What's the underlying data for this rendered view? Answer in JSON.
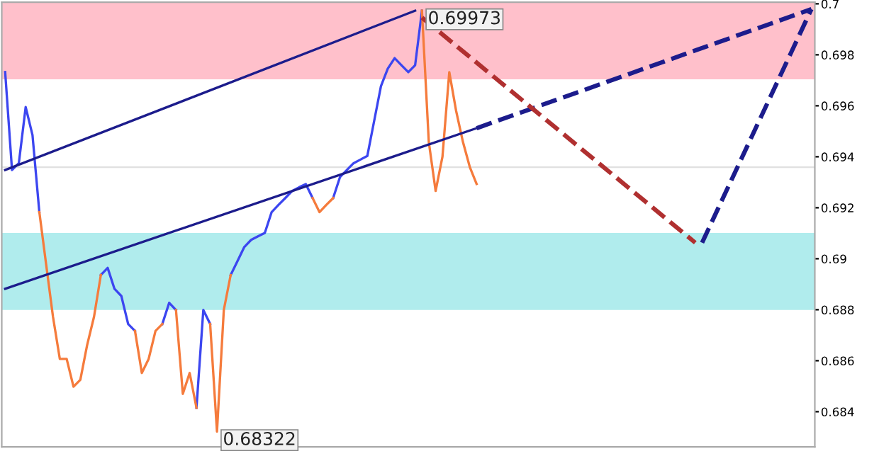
{
  "chart_data": {
    "type": "line",
    "tick_labels": "y",
    "categories": [
      null,
      null,
      null,
      null,
      null,
      null,
      null,
      null,
      null,
      null,
      null,
      null,
      null,
      null,
      null,
      null,
      null,
      null,
      null,
      null,
      null,
      null,
      null,
      null,
      null,
      null,
      null,
      null,
      null,
      null,
      null,
      null,
      null,
      null,
      null,
      null,
      null,
      null,
      null,
      null,
      null,
      null,
      null,
      null,
      null,
      null,
      null,
      null,
      null,
      null,
      null,
      null,
      null,
      null,
      null,
      null,
      null,
      null,
      null,
      null,
      null,
      null,
      null,
      null,
      null,
      null,
      null,
      null,
      null,
      null,
      null,
      null,
      null,
      null,
      null,
      null,
      null,
      null,
      null,
      null,
      null,
      null,
      null,
      null,
      null,
      null,
      null,
      null,
      null,
      null,
      null,
      null,
      null,
      null,
      null,
      null,
      null,
      null,
      null,
      null,
      null,
      null,
      null,
      null,
      null,
      null,
      null,
      null,
      null,
      null,
      null,
      null,
      null,
      null,
      null,
      null,
      null,
      null,
      null
    ],
    "ylim": [
      0.68262,
      0.70006
    ],
    "yticks": [
      0.684,
      0.686,
      0.688,
      0.69,
      0.692,
      0.694,
      0.696,
      0.698,
      0.7
    ],
    "bands": [
      {
        "axis": "y",
        "from": 0.69704,
        "to": 0.70006,
        "color": "#ffc0cb"
      },
      {
        "axis": "y",
        "from": 0.68799,
        "to": 0.69101,
        "color": "#b0eced"
      }
    ],
    "ref_lines": [
      {
        "axis": "y",
        "value": 0.69359,
        "color": "#e0e0e0"
      }
    ],
    "annotations": [
      "0.69973",
      "0.68322"
    ],
    "series": [
      {
        "color": "#3c46f0",
        "line_style": "solid",
        "values": [
          0.69732,
          0.69348,
          0.69375,
          0.69595,
          0.69485,
          0.69183,
          null,
          null,
          null,
          null,
          null,
          null,
          null,
          null,
          0.68936,
          0.68964,
          0.68882,
          0.68854,
          0.68744,
          0.68717,
          null,
          null,
          null,
          0.68744,
          0.68827,
          0.68799,
          null,
          null,
          0.68415,
          0.68799,
          0.68744,
          null,
          null,
          0.68936,
          0.68991,
          0.69046,
          0.69074,
          0.69088,
          0.69101,
          0.69183,
          0.69211,
          0.69238,
          0.69266,
          0.6928,
          0.69293,
          0.69238,
          null,
          null,
          0.69238,
          0.6932,
          0.69348,
          0.69375,
          0.69389,
          0.69403,
          0.6954,
          0.69677,
          0.69746,
          0.69787,
          0.69759,
          0.69732,
          0.69759,
          0.69973,
          null,
          null,
          null,
          null,
          null,
          null,
          null,
          null,
          null,
          null,
          null,
          null,
          null,
          null,
          null,
          null,
          null,
          null,
          null,
          null,
          null,
          null,
          null,
          null,
          null,
          null,
          null,
          null,
          null,
          null,
          null,
          null,
          null,
          null,
          null,
          null,
          null,
          null,
          null,
          null,
          null,
          null,
          null,
          null,
          null,
          null,
          null,
          null,
          null,
          null,
          null,
          null,
          null,
          null,
          null,
          null,
          null
        ]
      },
      {
        "color": "#f57b3c",
        "line_style": "solid",
        "values": [
          null,
          null,
          null,
          null,
          null,
          0.69183,
          0.68977,
          0.68772,
          0.68607,
          0.68607,
          0.68498,
          0.68525,
          0.68662,
          0.68772,
          0.68936,
          null,
          null,
          null,
          null,
          0.68717,
          0.68552,
          0.68607,
          0.68717,
          0.68744,
          null,
          0.68799,
          0.6847,
          0.68552,
          0.68415,
          null,
          0.68744,
          0.68322,
          0.68799,
          0.68936,
          null,
          null,
          null,
          null,
          null,
          null,
          null,
          null,
          null,
          null,
          null,
          0.69238,
          0.69183,
          0.69211,
          0.69238,
          null,
          null,
          null,
          null,
          null,
          null,
          null,
          null,
          null,
          null,
          null,
          null,
          0.69973,
          0.69458,
          0.69266,
          0.694,
          0.69732,
          0.6958,
          0.69458,
          0.6936,
          0.69293,
          null,
          null,
          null,
          null,
          null,
          null,
          null,
          null,
          null,
          null,
          null,
          null,
          null,
          null,
          null,
          null,
          null,
          null,
          null,
          null,
          null,
          null,
          null,
          null,
          null,
          null,
          null,
          null,
          null,
          null,
          null,
          null,
          null,
          null,
          null,
          null,
          null,
          null,
          null,
          null,
          null,
          null,
          null,
          null,
          null,
          null,
          null,
          null,
          null
        ]
      },
      {
        "color": "#1c1c8c",
        "line_style": "solid",
        "values": [
          0.69348,
          null,
          null,
          null,
          null,
          null,
          null,
          null,
          null,
          null,
          null,
          null,
          null,
          null,
          null,
          null,
          null,
          null,
          null,
          null,
          null,
          null,
          null,
          null,
          null,
          null,
          null,
          null,
          null,
          null,
          null,
          null,
          null,
          null,
          null,
          null,
          null,
          null,
          null,
          null,
          null,
          null,
          null,
          null,
          null,
          null,
          null,
          null,
          null,
          null,
          null,
          null,
          null,
          null,
          null,
          null,
          null,
          null,
          null,
          null,
          0.69973,
          null,
          null,
          null,
          null,
          null,
          null,
          null,
          null,
          null,
          null,
          null,
          null,
          null,
          null,
          null,
          null,
          null,
          null,
          null,
          null,
          null,
          null,
          null,
          null,
          null,
          null,
          null,
          null,
          null,
          null,
          null,
          null,
          null,
          null,
          null,
          null,
          null,
          null,
          null,
          null,
          null,
          null,
          null,
          null,
          null,
          null,
          null,
          null,
          null,
          null,
          null,
          null,
          null,
          null,
          null,
          null,
          null,
          null
        ]
      },
      {
        "color": "#1c1c8c",
        "line_style": "solid",
        "values": [
          0.68882,
          null,
          null,
          null,
          null,
          null,
          null,
          null,
          null,
          null,
          null,
          null,
          null,
          null,
          null,
          null,
          null,
          null,
          null,
          null,
          null,
          null,
          null,
          null,
          null,
          null,
          null,
          null,
          null,
          null,
          null,
          null,
          null,
          null,
          null,
          null,
          null,
          null,
          null,
          null,
          null,
          null,
          null,
          null,
          null,
          null,
          null,
          null,
          null,
          null,
          null,
          null,
          null,
          null,
          null,
          null,
          null,
          null,
          null,
          null,
          null,
          null,
          null,
          null,
          null,
          null,
          null,
          null,
          null,
          0.69512,
          null,
          null,
          null,
          null,
          null,
          null,
          null,
          null,
          null,
          null,
          null,
          null,
          null,
          null,
          null,
          null,
          null,
          null,
          null,
          null,
          null,
          null,
          null,
          null,
          null,
          null,
          null,
          null,
          null,
          null,
          null,
          null,
          null,
          null,
          null,
          null,
          null,
          null,
          null,
          null,
          null,
          null,
          null,
          null,
          null,
          null,
          null,
          null,
          null
        ]
      },
      {
        "color": "#1c1c8c",
        "line_style": "dashed",
        "values": [
          null,
          null,
          null,
          null,
          null,
          null,
          null,
          null,
          null,
          null,
          null,
          null,
          null,
          null,
          null,
          null,
          null,
          null,
          null,
          null,
          null,
          null,
          null,
          null,
          null,
          null,
          null,
          null,
          null,
          null,
          null,
          null,
          null,
          null,
          null,
          null,
          null,
          null,
          null,
          null,
          null,
          null,
          null,
          null,
          null,
          null,
          null,
          null,
          null,
          null,
          null,
          null,
          null,
          null,
          null,
          null,
          null,
          null,
          null,
          null,
          null,
          null,
          null,
          null,
          null,
          null,
          null,
          null,
          null,
          0.69512,
          null,
          null,
          null,
          null,
          null,
          null,
          null,
          null,
          null,
          null,
          null,
          null,
          null,
          null,
          null,
          null,
          null,
          null,
          null,
          null,
          null,
          null,
          null,
          null,
          null,
          null,
          null,
          null,
          null,
          null,
          null,
          null,
          null,
          null,
          null,
          null,
          null,
          null,
          null,
          null,
          null,
          null,
          null,
          null,
          null,
          null,
          null,
          null,
          0.69979
        ]
      },
      {
        "color": "#b03030",
        "line_style": "dashed",
        "values": [
          null,
          null,
          null,
          null,
          null,
          null,
          null,
          null,
          null,
          null,
          null,
          null,
          null,
          null,
          null,
          null,
          null,
          null,
          null,
          null,
          null,
          null,
          null,
          null,
          null,
          null,
          null,
          null,
          null,
          null,
          null,
          null,
          null,
          null,
          null,
          null,
          null,
          null,
          null,
          null,
          null,
          null,
          null,
          null,
          null,
          null,
          null,
          null,
          null,
          null,
          null,
          null,
          null,
          null,
          null,
          null,
          null,
          null,
          null,
          null,
          null,
          0.69946,
          null,
          null,
          null,
          null,
          null,
          null,
          null,
          null,
          null,
          null,
          null,
          null,
          null,
          null,
          null,
          null,
          null,
          null,
          null,
          null,
          null,
          null,
          null,
          null,
          null,
          null,
          null,
          null,
          null,
          null,
          null,
          null,
          null,
          null,
          null,
          null,
          null,
          null,
          null,
          0.69063,
          null,
          null,
          null,
          null,
          null,
          null,
          null,
          null,
          null,
          null,
          null,
          null,
          null,
          null,
          null,
          null,
          null
        ]
      },
      {
        "color": "#1c1c8c",
        "line_style": "dashed",
        "values": [
          null,
          null,
          null,
          null,
          null,
          null,
          null,
          null,
          null,
          null,
          null,
          null,
          null,
          null,
          null,
          null,
          null,
          null,
          null,
          null,
          null,
          null,
          null,
          null,
          null,
          null,
          null,
          null,
          null,
          null,
          null,
          null,
          null,
          null,
          null,
          null,
          null,
          null,
          null,
          null,
          null,
          null,
          null,
          null,
          null,
          null,
          null,
          null,
          null,
          null,
          null,
          null,
          null,
          null,
          null,
          null,
          null,
          null,
          null,
          null,
          null,
          null,
          null,
          null,
          null,
          null,
          null,
          null,
          null,
          null,
          null,
          null,
          null,
          null,
          null,
          null,
          null,
          null,
          null,
          null,
          null,
          null,
          null,
          null,
          null,
          null,
          null,
          null,
          null,
          null,
          null,
          null,
          null,
          null,
          null,
          null,
          null,
          null,
          null,
          null,
          null,
          null,
          0.69063,
          null,
          null,
          null,
          null,
          null,
          null,
          null,
          null,
          null,
          null,
          null,
          null,
          null,
          null,
          null,
          0.69979
        ]
      }
    ]
  }
}
